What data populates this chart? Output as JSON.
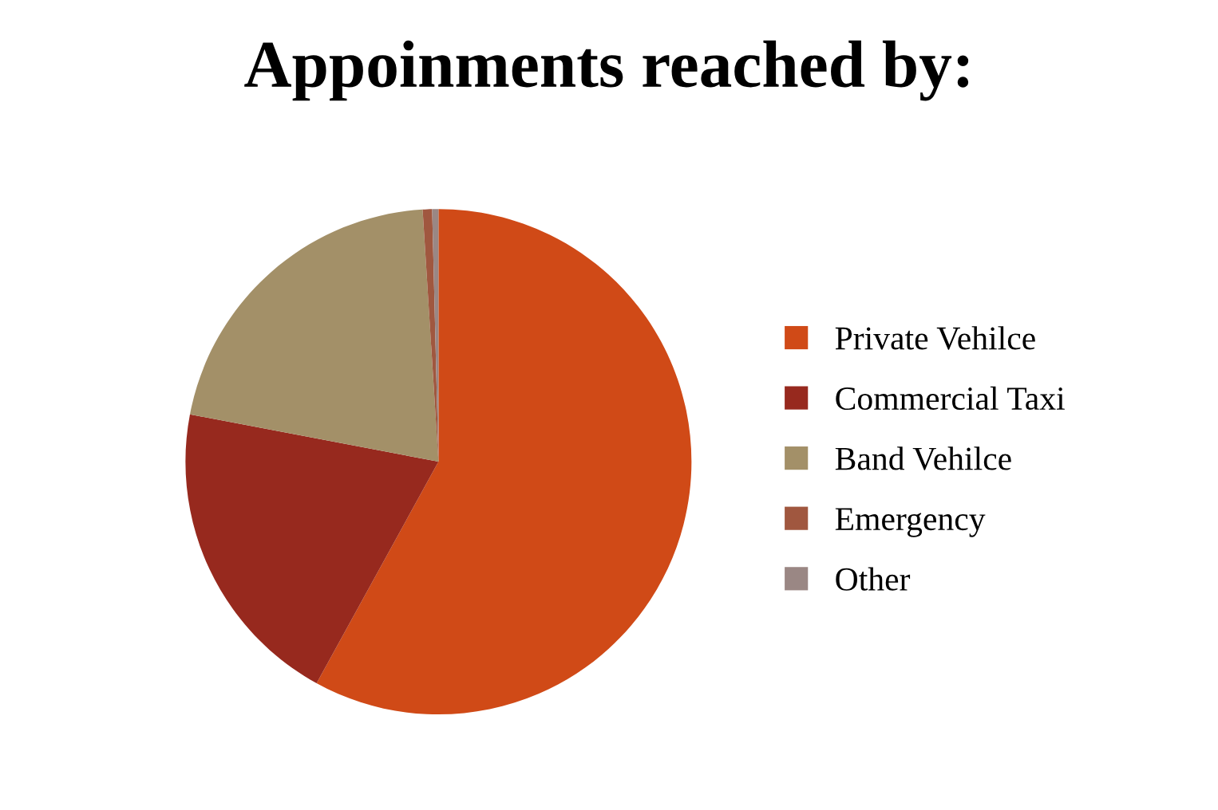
{
  "chart_data": {
    "type": "pie",
    "title": "Appoinments reached by:",
    "categories": [
      "Private Vehilce",
      "Commercial Taxi",
      "Band Vehilce",
      "Emergency",
      "Other"
    ],
    "values": [
      58,
      20,
      21,
      0.6,
      0.4
    ],
    "colors": [
      "#d04a17",
      "#97291e",
      "#a39068",
      "#a0573f",
      "#9a8784"
    ],
    "legend": "right"
  }
}
